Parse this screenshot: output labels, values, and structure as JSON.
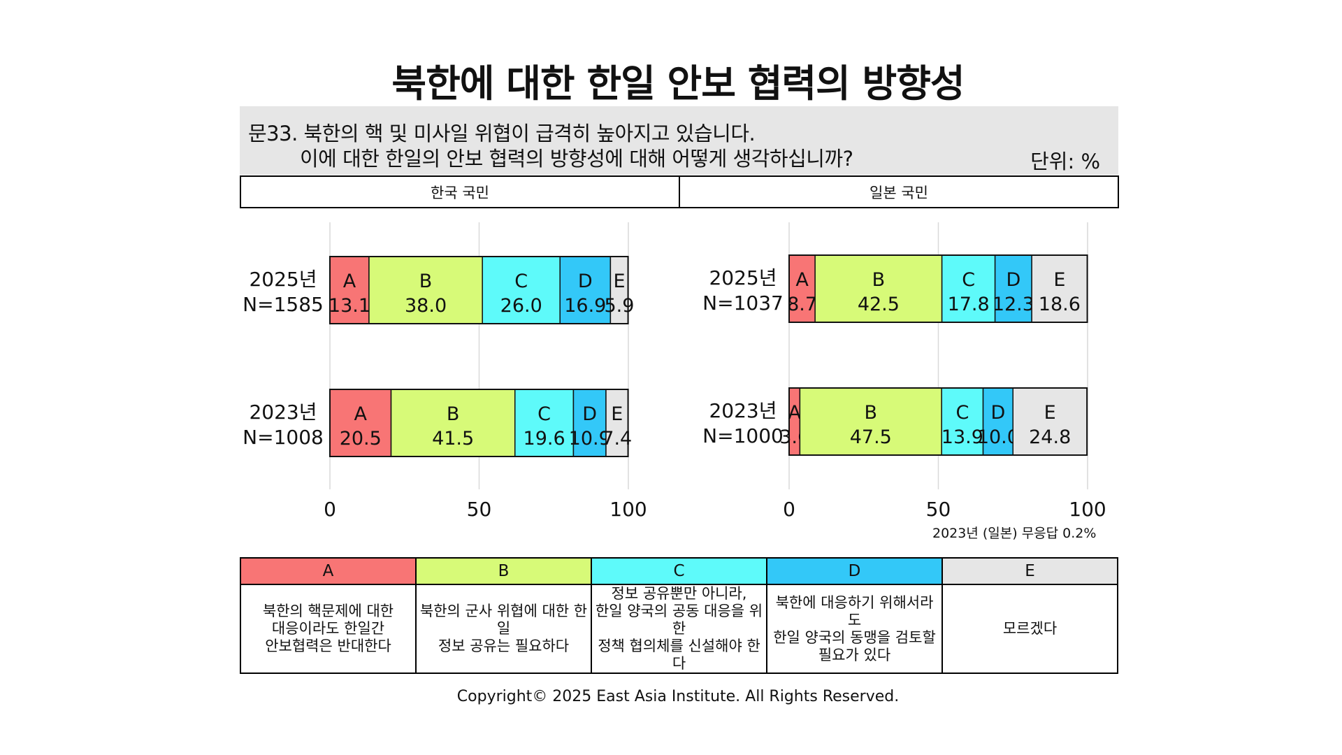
{
  "title": "북한에 대한 한일 안보 협력의 방향성",
  "question": {
    "line1": "문33. 북한의 핵 및 미사일 위협이 급격히 높아지고 있습니다.",
    "line2": "이에 대한 한일의 안보 협력의 방향성에 대해 어떻게 생각하십니까?",
    "unit": "단위: %"
  },
  "panels": [
    "한국 국민",
    "일본 국민"
  ],
  "legend": [
    {
      "code": "A",
      "color": "#f87575",
      "text": "북한의 핵문제에 대한\n대응이라도 한일간\n안보협력은 반대한다"
    },
    {
      "code": "B",
      "color": "#d7fa78",
      "text": "북한의 군사 위협에 대한 한일\n정보 공유는 필요하다"
    },
    {
      "code": "C",
      "color": "#5efafa",
      "text": "정보 공유뿐만 아니라,\n한일 양국의 공동 대응을 위한\n정책 협의체를 신설해야 한다"
    },
    {
      "code": "D",
      "color": "#33c8f8",
      "text": "북한에 대응하기 위해서라도\n한일 양국의 동맹을 검토할\n필요가 있다"
    },
    {
      "code": "E",
      "color": "#e6e6e6",
      "text": "모르겠다"
    }
  ],
  "footnote": "2023년 (일본) 무응답 0.2%",
  "copyright": "Copyright© 2025 East Asia Institute. All Rights Reserved.",
  "chart_data": [
    {
      "type": "bar",
      "stacked": true,
      "orientation": "horizontal",
      "panel": "한국 국민",
      "categories": [
        "2025년\nN=1585",
        "2023년\nN=1008"
      ],
      "series": [
        {
          "name": "A",
          "values": [
            13.1,
            20.5
          ]
        },
        {
          "name": "B",
          "values": [
            38.0,
            41.5
          ]
        },
        {
          "name": "C",
          "values": [
            26.0,
            19.6
          ]
        },
        {
          "name": "D",
          "values": [
            16.9,
            10.9
          ]
        },
        {
          "name": "E",
          "values": [
            5.9,
            7.4
          ]
        }
      ],
      "xlim": [
        0,
        100
      ],
      "xticks": [
        0,
        50,
        100
      ],
      "grid": true
    },
    {
      "type": "bar",
      "stacked": true,
      "orientation": "horizontal",
      "panel": "일본 국민",
      "categories": [
        "2025년\nN=1037",
        "2023년\nN=1000"
      ],
      "series": [
        {
          "name": "A",
          "values": [
            8.7,
            3.6
          ]
        },
        {
          "name": "B",
          "values": [
            42.5,
            47.5
          ]
        },
        {
          "name": "C",
          "values": [
            17.8,
            13.9
          ]
        },
        {
          "name": "D",
          "values": [
            12.3,
            10.0
          ]
        },
        {
          "name": "E",
          "values": [
            18.6,
            24.8
          ]
        }
      ],
      "xlim": [
        0,
        100
      ],
      "xticks": [
        0,
        50,
        100
      ],
      "grid": true
    }
  ]
}
